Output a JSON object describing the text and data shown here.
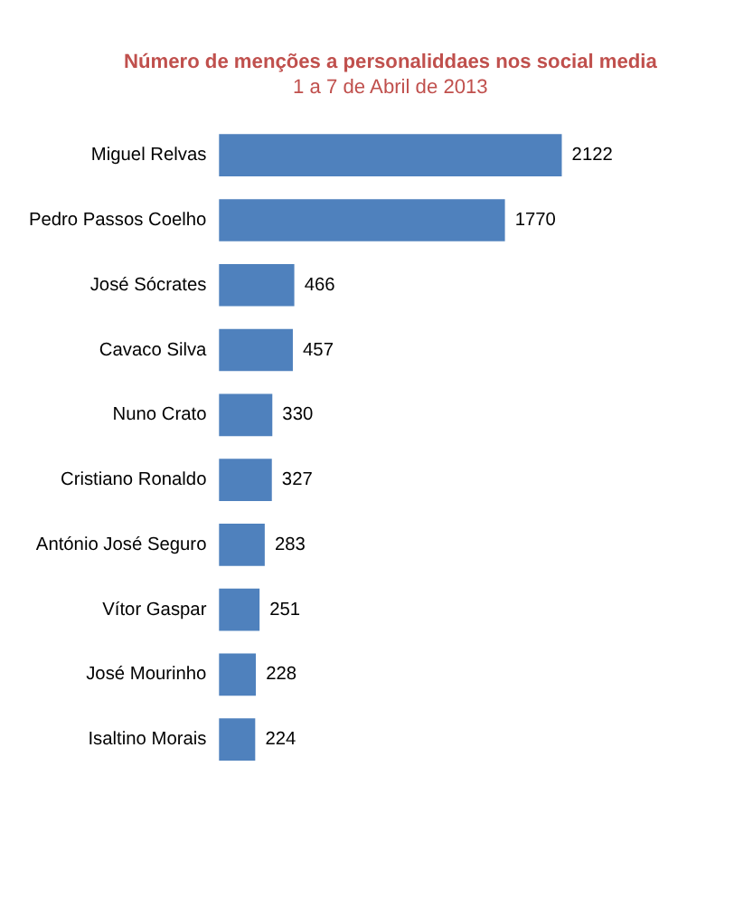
{
  "chart_data": {
    "type": "bar",
    "orientation": "horizontal",
    "title": "Número de menções a personaliddaes nos social media",
    "subtitle": "1 a 7 de Abril de 2013",
    "categories": [
      "Miguel Relvas",
      "Pedro Passos Coelho",
      "José Sócrates",
      "Cavaco Silva",
      "Nuno Crato",
      "Cristiano Ronaldo",
      "António José Seguro",
      "Vítor Gaspar",
      "José Mourinho",
      "Isaltino Morais"
    ],
    "values": [
      2122,
      1770,
      466,
      457,
      330,
      327,
      283,
      251,
      228,
      224
    ],
    "color": "#4f81bd",
    "data_labels": true,
    "grid": false
  }
}
